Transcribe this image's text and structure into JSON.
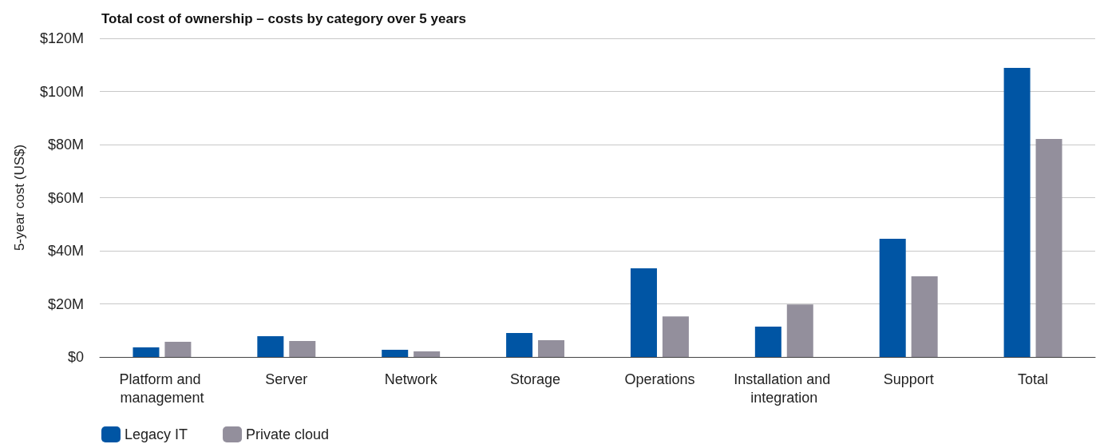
{
  "chart_data": {
    "type": "bar",
    "title": "Total cost of ownership – costs by category over 5 years",
    "ylabel": "5-year cost (US$)",
    "categories": [
      "Platform and management",
      "Server",
      "Network",
      "Storage",
      "Operations",
      "Installation and integration",
      "Support",
      "Total"
    ],
    "series": [
      {
        "name": "Legacy IT",
        "color": "#0055a4",
        "values": [
          3.6,
          7.8,
          2.7,
          9.0,
          33.4,
          11.4,
          44.5,
          108.9
        ]
      },
      {
        "name": "Private cloud",
        "color": "#938f9c",
        "values": [
          5.7,
          6.0,
          2.1,
          6.3,
          15.3,
          19.8,
          30.4,
          82.1
        ]
      }
    ],
    "ylim": [
      0,
      120
    ],
    "yticks": [
      {
        "value": 0,
        "label": "$0"
      },
      {
        "value": 20,
        "label": "$20M"
      },
      {
        "value": 40,
        "label": "$40M"
      },
      {
        "value": 60,
        "label": "$60M"
      },
      {
        "value": 80,
        "label": "$80M"
      },
      {
        "value": 100,
        "label": "$100M"
      },
      {
        "value": 120,
        "label": "$120M"
      }
    ],
    "grid": "y",
    "legend": "bottom left"
  }
}
